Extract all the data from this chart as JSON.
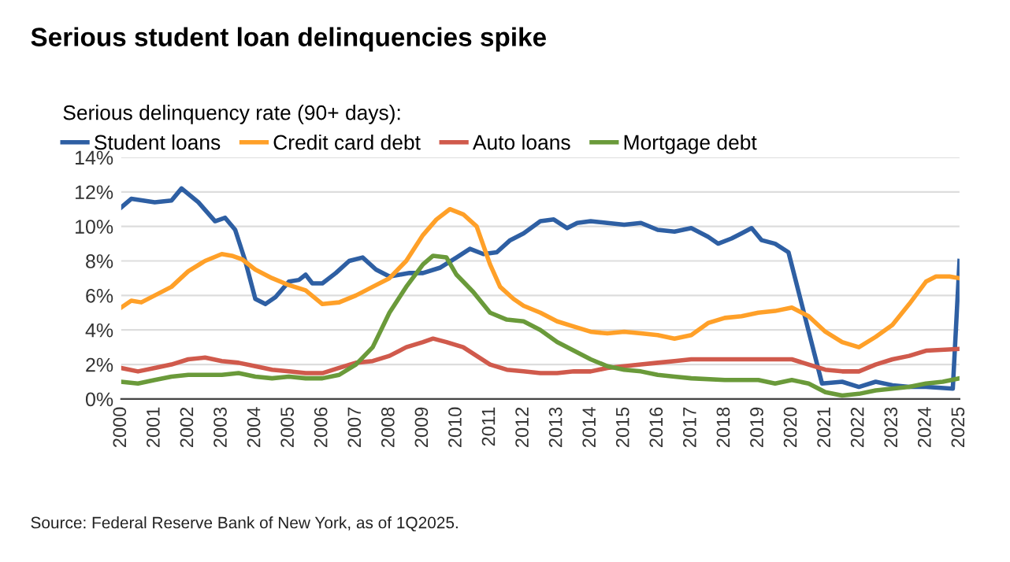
{
  "chart_data": {
    "type": "line",
    "title": "Serious student loan delinquencies spike",
    "legend_title": "Serious delinquency rate (90+ days):",
    "legend": "top",
    "grid": "y",
    "xlim": [
      2000,
      2025
    ],
    "xticks": [
      2000,
      2001,
      2002,
      2003,
      2004,
      2005,
      2006,
      2007,
      2008,
      2009,
      2010,
      2011,
      2012,
      2013,
      2014,
      2015,
      2016,
      2017,
      2018,
      2019,
      2020,
      2021,
      2022,
      2023,
      2024,
      2025
    ],
    "ylim": [
      0,
      14
    ],
    "yticks": [
      {
        "value": 0,
        "label": "0%"
      },
      {
        "value": 2,
        "label": "2%"
      },
      {
        "value": 4,
        "label": "4%"
      },
      {
        "value": 6,
        "label": "6%"
      },
      {
        "value": 8,
        "label": "8%"
      },
      {
        "value": 10,
        "label": "10%"
      },
      {
        "value": 12,
        "label": "12%"
      },
      {
        "value": 14,
        "label": "14%"
      }
    ],
    "annotations": [
      "Source: Federal Reserve Bank of New York, as of 1Q2025."
    ],
    "series": [
      {
        "name": "Student loans",
        "color": "#2e5fa3",
        "x": [
          2000,
          2000.3,
          2001,
          2001.5,
          2001.8,
          2002.3,
          2002.8,
          2003.1,
          2003.4,
          2003.7,
          2004,
          2004.3,
          2004.6,
          2005,
          2005.3,
          2005.5,
          2005.7,
          2006,
          2006.4,
          2006.8,
          2007.2,
          2007.6,
          2008,
          2008.3,
          2008.6,
          2009,
          2009.5,
          2010,
          2010.4,
          2010.8,
          2011.2,
          2011.6,
          2012,
          2012.5,
          2012.9,
          2013.3,
          2013.6,
          2014,
          2014.5,
          2015,
          2015.5,
          2016,
          2016.5,
          2017,
          2017.5,
          2017.8,
          2018.2,
          2018.5,
          2018.8,
          2019.1,
          2019.5,
          2019.9,
          2020.9,
          2021.5,
          2022,
          2022.5,
          2023,
          2023.5,
          2024,
          2024.8,
          2025
        ],
        "values": [
          11.1,
          11.6,
          11.4,
          11.5,
          12.2,
          11.4,
          10.3,
          10.5,
          9.8,
          8.0,
          5.8,
          5.5,
          5.9,
          6.8,
          6.9,
          7.2,
          6.7,
          6.7,
          7.3,
          8.0,
          8.2,
          7.5,
          7.1,
          7.2,
          7.3,
          7.3,
          7.6,
          8.2,
          8.7,
          8.4,
          8.5,
          9.2,
          9.6,
          10.3,
          10.4,
          9.9,
          10.2,
          10.3,
          10.2,
          10.1,
          10.2,
          9.8,
          9.7,
          9.9,
          9.4,
          9.0,
          9.3,
          9.6,
          9.9,
          9.2,
          9.0,
          8.5,
          0.9,
          1.0,
          0.7,
          1.0,
          0.8,
          0.7,
          0.7,
          0.6,
          8.0
        ]
      },
      {
        "name": "Credit card debt",
        "color": "#ffa028",
        "x": [
          2000,
          2000.3,
          2000.6,
          2001,
          2001.5,
          2002,
          2002.5,
          2003,
          2003.3,
          2003.6,
          2004,
          2004.5,
          2005,
          2005.5,
          2006,
          2006.5,
          2007,
          2007.5,
          2008,
          2008.5,
          2009,
          2009.4,
          2009.8,
          2010.2,
          2010.6,
          2011,
          2011.3,
          2011.7,
          2012,
          2012.5,
          2013,
          2013.5,
          2014,
          2014.5,
          2015,
          2015.5,
          2016,
          2016.5,
          2017,
          2017.5,
          2018,
          2018.5,
          2019,
          2019.5,
          2020,
          2020.5,
          2021,
          2021.5,
          2022,
          2022.5,
          2023,
          2023.5,
          2024,
          2024.3,
          2024.7,
          2025
        ],
        "values": [
          5.3,
          5.7,
          5.6,
          6.0,
          6.5,
          7.4,
          8.0,
          8.4,
          8.3,
          8.1,
          7.5,
          7.0,
          6.6,
          6.3,
          5.5,
          5.6,
          6.0,
          6.5,
          7.0,
          8.0,
          9.5,
          10.4,
          11.0,
          10.7,
          10.0,
          7.8,
          6.5,
          5.8,
          5.4,
          5.0,
          4.5,
          4.2,
          3.9,
          3.8,
          3.9,
          3.8,
          3.7,
          3.5,
          3.7,
          4.4,
          4.7,
          4.8,
          5.0,
          5.1,
          5.3,
          4.8,
          3.9,
          3.3,
          3.0,
          3.6,
          4.3,
          5.5,
          6.8,
          7.1,
          7.1,
          7.0
        ]
      },
      {
        "name": "Auto loans",
        "color": "#d05a4c",
        "x": [
          2000,
          2000.5,
          2001,
          2001.5,
          2002,
          2002.5,
          2003,
          2003.5,
          2004,
          2004.5,
          2005,
          2005.5,
          2006,
          2006.5,
          2007,
          2007.5,
          2008,
          2008.5,
          2009,
          2009.3,
          2009.7,
          2010.2,
          2010.6,
          2011,
          2011.5,
          2012,
          2012.5,
          2013,
          2013.5,
          2014,
          2014.5,
          2015,
          2015.5,
          2016,
          2016.5,
          2017,
          2017.5,
          2018,
          2019,
          2020,
          2020.5,
          2021,
          2021.5,
          2022,
          2022.5,
          2023,
          2023.5,
          2024,
          2025
        ],
        "values": [
          1.8,
          1.6,
          1.8,
          2.0,
          2.3,
          2.4,
          2.2,
          2.1,
          1.9,
          1.7,
          1.6,
          1.5,
          1.5,
          1.8,
          2.1,
          2.2,
          2.5,
          3.0,
          3.3,
          3.5,
          3.3,
          3.0,
          2.5,
          2.0,
          1.7,
          1.6,
          1.5,
          1.5,
          1.6,
          1.6,
          1.8,
          1.9,
          2.0,
          2.1,
          2.2,
          2.3,
          2.3,
          2.3,
          2.3,
          2.3,
          2.0,
          1.7,
          1.6,
          1.6,
          2.0,
          2.3,
          2.5,
          2.8,
          2.9
        ]
      },
      {
        "name": "Mortgage debt",
        "color": "#6a9a3a",
        "x": [
          2000,
          2000.5,
          2001,
          2001.5,
          2002,
          2003,
          2003.5,
          2004,
          2004.5,
          2005,
          2005.5,
          2006,
          2006.5,
          2007,
          2007.5,
          2008,
          2008.5,
          2009,
          2009.3,
          2009.7,
          2010,
          2010.5,
          2011,
          2011.5,
          2012,
          2012.5,
          2013,
          2013.5,
          2014,
          2014.5,
          2015,
          2015.5,
          2016,
          2016.5,
          2017,
          2018,
          2019,
          2019.5,
          2020,
          2020.5,
          2021,
          2021.5,
          2022,
          2022.5,
          2023,
          2023.5,
          2024,
          2024.5,
          2025
        ],
        "values": [
          1.0,
          0.9,
          1.1,
          1.3,
          1.4,
          1.4,
          1.5,
          1.3,
          1.2,
          1.3,
          1.2,
          1.2,
          1.4,
          2.0,
          3.0,
          5.0,
          6.5,
          7.8,
          8.3,
          8.2,
          7.2,
          6.2,
          5.0,
          4.6,
          4.5,
          4.0,
          3.3,
          2.8,
          2.3,
          1.9,
          1.7,
          1.6,
          1.4,
          1.3,
          1.2,
          1.1,
          1.1,
          0.9,
          1.1,
          0.9,
          0.4,
          0.2,
          0.3,
          0.5,
          0.6,
          0.7,
          0.9,
          1.0,
          1.2
        ]
      }
    ]
  }
}
